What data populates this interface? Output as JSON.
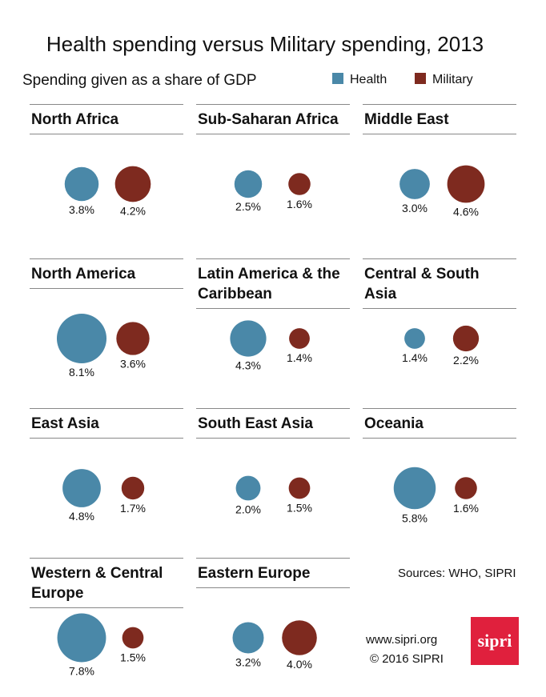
{
  "chart_data": {
    "type": "bubble",
    "title": "Health spending versus Military spending, 2013",
    "subtitle": "Spending given as a share of GDP",
    "categories": [
      "North Africa",
      "Sub-Saharan Africa",
      "Middle East",
      "North America",
      "Latin America & the Caribbean",
      "Central & South Asia",
      "East Asia",
      "South East Asia",
      "Oceania",
      "Western & Central Europe",
      "Eastern Europe"
    ],
    "series": [
      {
        "name": "Health",
        "color": "#4a88a8",
        "values": [
          3.8,
          2.5,
          3.0,
          8.1,
          4.3,
          1.4,
          4.8,
          2.0,
          5.8,
          7.8,
          3.2
        ],
        "value_labels": [
          "3.8%",
          "2.5%",
          "3.0%",
          "8.1%",
          "4.3%",
          "1.4%",
          "4.8%",
          "2.0%",
          "5.8%",
          "7.8%",
          "3.2%"
        ]
      },
      {
        "name": "Military",
        "color": "#7e2a1f",
        "values": [
          4.2,
          1.6,
          4.6,
          3.6,
          1.4,
          2.2,
          1.7,
          1.5,
          1.6,
          1.5,
          4.0
        ],
        "value_labels": [
          "4.2%",
          "1.6%",
          "4.6%",
          "3.6%",
          "1.4%",
          "2.2%",
          "1.7%",
          "1.5%",
          "1.6%",
          "1.5%",
          "4.0%"
        ]
      }
    ]
  },
  "footer": {
    "sources": "Sources: WHO, SIPRI",
    "website": "www.sipri.org",
    "copyright": "© 2016 SIPRI",
    "logo": "sipri"
  }
}
